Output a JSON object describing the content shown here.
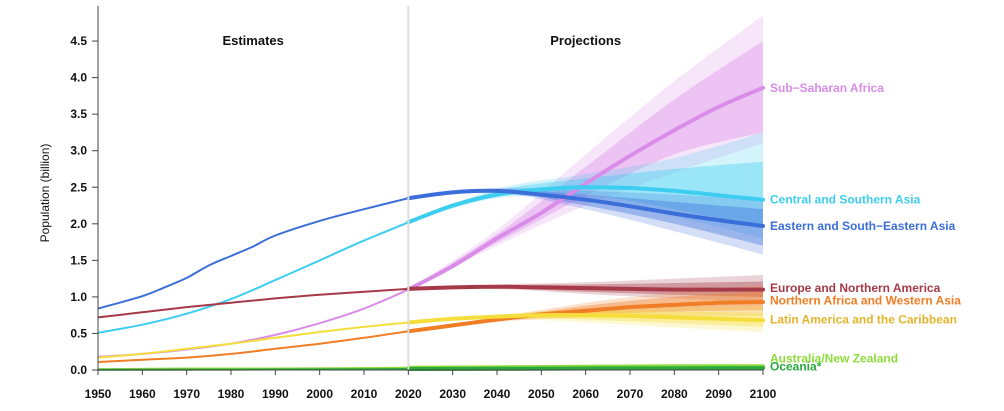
{
  "chart_data": {
    "type": "line",
    "ylabel": "Population (billion)",
    "xlim": [
      1950,
      2100
    ],
    "ylim": [
      0,
      4.85
    ],
    "xticks": [
      "1950",
      "1960",
      "1970",
      "1980",
      "1990",
      "2000",
      "2010",
      "2020",
      "2030",
      "2040",
      "2050",
      "2060",
      "2070",
      "2080",
      "2090",
      "2100"
    ],
    "yticks": [
      "0.0",
      "0.5",
      "1.0",
      "1.5",
      "2.0",
      "2.5",
      "3.0",
      "3.5",
      "4.0",
      "4.5"
    ],
    "divider_year": 2020,
    "periods": [
      {
        "label": "Estimates",
        "x": 1985
      },
      {
        "label": "Projections",
        "x": 2060
      }
    ],
    "series": [
      {
        "name": "Sub−Saharan Africa",
        "color": "#d98ce8",
        "points": [
          [
            1950,
            0.18
          ],
          [
            1960,
            0.22
          ],
          [
            1970,
            0.28
          ],
          [
            1980,
            0.36
          ],
          [
            1990,
            0.48
          ],
          [
            2000,
            0.64
          ],
          [
            2010,
            0.84
          ],
          [
            2020,
            1.1
          ],
          [
            2030,
            1.42
          ],
          [
            2040,
            1.8
          ],
          [
            2050,
            2.15
          ],
          [
            2060,
            2.55
          ],
          [
            2070,
            2.93
          ],
          [
            2080,
            3.28
          ],
          [
            2090,
            3.6
          ],
          [
            2100,
            3.86
          ]
        ],
        "band95": [
          [
            2020,
            1.1,
            1.1
          ],
          [
            2040,
            1.7,
            1.92
          ],
          [
            2060,
            2.25,
            2.95
          ],
          [
            2080,
            2.7,
            3.95
          ],
          [
            2100,
            3.1,
            4.85
          ]
        ],
        "band80": [
          [
            2020,
            1.1,
            1.1
          ],
          [
            2040,
            1.74,
            1.86
          ],
          [
            2060,
            2.38,
            2.78
          ],
          [
            2080,
            2.95,
            3.7
          ],
          [
            2100,
            3.25,
            4.5
          ]
        ]
      },
      {
        "name": "Central and Southern Asia",
        "color": "#3dcdf0",
        "points": [
          [
            1950,
            0.51
          ],
          [
            1960,
            0.62
          ],
          [
            1970,
            0.77
          ],
          [
            1980,
            0.97
          ],
          [
            1990,
            1.23
          ],
          [
            2000,
            1.5
          ],
          [
            2010,
            1.77
          ],
          [
            2020,
            2.02
          ],
          [
            2030,
            2.25
          ],
          [
            2040,
            2.4
          ],
          [
            2050,
            2.47
          ],
          [
            2060,
            2.5
          ],
          [
            2070,
            2.49
          ],
          [
            2080,
            2.45
          ],
          [
            2090,
            2.39
          ],
          [
            2100,
            2.33
          ]
        ],
        "band95": [
          [
            2020,
            2.02,
            2.02
          ],
          [
            2040,
            2.35,
            2.48
          ],
          [
            2060,
            2.35,
            2.68
          ],
          [
            2080,
            2.1,
            2.9
          ],
          [
            2100,
            1.8,
            3.25
          ]
        ],
        "band80": [
          [
            2020,
            2.02,
            2.02
          ],
          [
            2040,
            2.37,
            2.45
          ],
          [
            2060,
            2.4,
            2.62
          ],
          [
            2080,
            2.2,
            2.75
          ],
          [
            2100,
            1.95,
            2.85
          ]
        ]
      },
      {
        "name": "Eastern and South−Eastern Asia",
        "color": "#3c6ed9",
        "points": [
          [
            1950,
            0.84
          ],
          [
            1960,
            1.01
          ],
          [
            1965,
            1.13
          ],
          [
            1970,
            1.26
          ],
          [
            1975,
            1.43
          ],
          [
            1980,
            1.56
          ],
          [
            1985,
            1.69
          ],
          [
            1990,
            1.84
          ],
          [
            2000,
            2.04
          ],
          [
            2010,
            2.2
          ],
          [
            2020,
            2.35
          ],
          [
            2030,
            2.43
          ],
          [
            2040,
            2.45
          ],
          [
            2050,
            2.4
          ],
          [
            2060,
            2.33
          ],
          [
            2070,
            2.24
          ],
          [
            2080,
            2.14
          ],
          [
            2090,
            2.05
          ],
          [
            2100,
            1.97
          ]
        ],
        "band95": [
          [
            2020,
            2.35,
            2.35
          ],
          [
            2040,
            2.42,
            2.49
          ],
          [
            2060,
            2.2,
            2.45
          ],
          [
            2080,
            1.9,
            2.4
          ],
          [
            2100,
            1.58,
            2.32
          ]
        ],
        "band80": [
          [
            2020,
            2.35,
            2.35
          ],
          [
            2040,
            2.43,
            2.47
          ],
          [
            2060,
            2.25,
            2.4
          ],
          [
            2080,
            2.0,
            2.3
          ],
          [
            2100,
            1.7,
            2.2
          ]
        ]
      },
      {
        "name": "Europe and Northern America",
        "color": "#a63a48",
        "points": [
          [
            1950,
            0.72
          ],
          [
            1960,
            0.79
          ],
          [
            1970,
            0.86
          ],
          [
            1980,
            0.92
          ],
          [
            1990,
            0.98
          ],
          [
            2000,
            1.03
          ],
          [
            2010,
            1.07
          ],
          [
            2020,
            1.11
          ],
          [
            2030,
            1.13
          ],
          [
            2040,
            1.14
          ],
          [
            2050,
            1.13
          ],
          [
            2060,
            1.12
          ],
          [
            2070,
            1.11
          ],
          [
            2080,
            1.1
          ],
          [
            2090,
            1.1
          ],
          [
            2100,
            1.1
          ]
        ],
        "band95": [
          [
            2020,
            1.11,
            1.11
          ],
          [
            2040,
            1.11,
            1.17
          ],
          [
            2060,
            1.04,
            1.2
          ],
          [
            2080,
            0.98,
            1.25
          ],
          [
            2100,
            0.93,
            1.3
          ]
        ],
        "band80": [
          [
            2020,
            1.11,
            1.11
          ],
          [
            2040,
            1.12,
            1.16
          ],
          [
            2060,
            1.07,
            1.17
          ],
          [
            2080,
            1.03,
            1.19
          ],
          [
            2100,
            1.0,
            1.21
          ]
        ]
      },
      {
        "name": "Northern Africa and Western Asia",
        "color": "#f07e26",
        "points": [
          [
            1950,
            0.11
          ],
          [
            1960,
            0.14
          ],
          [
            1970,
            0.17
          ],
          [
            1980,
            0.22
          ],
          [
            1990,
            0.29
          ],
          [
            2000,
            0.36
          ],
          [
            2010,
            0.44
          ],
          [
            2020,
            0.53
          ],
          [
            2030,
            0.61
          ],
          [
            2040,
            0.69
          ],
          [
            2050,
            0.76
          ],
          [
            2060,
            0.81
          ],
          [
            2070,
            0.86
          ],
          [
            2080,
            0.89
          ],
          [
            2090,
            0.92
          ],
          [
            2100,
            0.93
          ]
        ],
        "band95": [
          [
            2020,
            0.53,
            0.53
          ],
          [
            2040,
            0.66,
            0.72
          ],
          [
            2060,
            0.72,
            0.92
          ],
          [
            2080,
            0.74,
            1.06
          ],
          [
            2100,
            0.74,
            1.16
          ]
        ],
        "band80": [
          [
            2020,
            0.53,
            0.53
          ],
          [
            2040,
            0.67,
            0.71
          ],
          [
            2060,
            0.75,
            0.88
          ],
          [
            2080,
            0.8,
            1.0
          ],
          [
            2100,
            0.82,
            1.07
          ]
        ]
      },
      {
        "name": "Latin America and the Caribbean",
        "color": "#f5dd3c",
        "points": [
          [
            1950,
            0.17
          ],
          [
            1960,
            0.22
          ],
          [
            1970,
            0.29
          ],
          [
            1980,
            0.36
          ],
          [
            1990,
            0.44
          ],
          [
            2000,
            0.52
          ],
          [
            2010,
            0.59
          ],
          [
            2020,
            0.65
          ],
          [
            2030,
            0.7
          ],
          [
            2040,
            0.73
          ],
          [
            2050,
            0.75
          ],
          [
            2060,
            0.75
          ],
          [
            2070,
            0.74
          ],
          [
            2080,
            0.72
          ],
          [
            2090,
            0.7
          ],
          [
            2100,
            0.68
          ]
        ],
        "band95": [
          [
            2020,
            0.65,
            0.65
          ],
          [
            2040,
            0.7,
            0.76
          ],
          [
            2060,
            0.65,
            0.84
          ],
          [
            2080,
            0.58,
            0.86
          ],
          [
            2100,
            0.52,
            0.88
          ]
        ],
        "band80": [
          [
            2020,
            0.65,
            0.65
          ],
          [
            2040,
            0.71,
            0.75
          ],
          [
            2060,
            0.69,
            0.81
          ],
          [
            2080,
            0.64,
            0.8
          ],
          [
            2100,
            0.59,
            0.78
          ]
        ]
      },
      {
        "name": "Australia/New Zealand",
        "color": "#8edc3c",
        "points": [
          [
            1950,
            0.01
          ],
          [
            1970,
            0.02
          ],
          [
            1990,
            0.02
          ],
          [
            2020,
            0.03
          ],
          [
            2050,
            0.04
          ],
          [
            2080,
            0.05
          ],
          [
            2100,
            0.05
          ]
        ],
        "band95": [
          [
            2020,
            0.03,
            0.03
          ],
          [
            2060,
            0.03,
            0.06
          ],
          [
            2100,
            0.03,
            0.07
          ]
        ],
        "band80": [
          [
            2020,
            0.03,
            0.03
          ],
          [
            2060,
            0.035,
            0.055
          ],
          [
            2100,
            0.04,
            0.065
          ]
        ]
      },
      {
        "name": "Oceania*",
        "color": "#2aaa3c",
        "points": [
          [
            1950,
            0.003
          ],
          [
            1980,
            0.005
          ],
          [
            2020,
            0.013
          ],
          [
            2060,
            0.02
          ],
          [
            2100,
            0.026
          ]
        ],
        "band95": [
          [
            2020,
            0.013,
            0.013
          ],
          [
            2060,
            0.01,
            0.035
          ],
          [
            2100,
            0.01,
            0.045
          ]
        ],
        "band80": [
          [
            2020,
            0.013,
            0.013
          ],
          [
            2060,
            0.013,
            0.03
          ],
          [
            2100,
            0.015,
            0.038
          ]
        ]
      }
    ],
    "end_labels": [
      {
        "text": "Sub−Saharan Africa",
        "color": "#d98ce8",
        "y": 3.86
      },
      {
        "text": "Central and Southern Asia",
        "color": "#3dcdf0",
        "y": 2.33
      },
      {
        "text": "Eastern and South−Eastern Asia",
        "color": "#3c6ed9",
        "y": 1.97
      },
      {
        "text": "Europe and Northern America",
        "color": "#a63a48",
        "y": 1.12
      },
      {
        "text": "Northern Africa and Western Asia",
        "color": "#f07e26",
        "y": 0.95
      },
      {
        "text": "Latin America and the Caribbean",
        "color": "#e3b52c",
        "y": 0.69
      },
      {
        "text": "Australia/New Zealand",
        "color": "#8edc3c",
        "y": 0.16
      },
      {
        "text": "Oceania*",
        "color": "#2aaa3c",
        "y": 0.045
      }
    ]
  }
}
